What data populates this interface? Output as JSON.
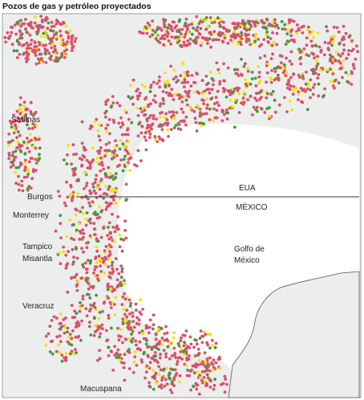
{
  "title": "Pozos de gas y petróleo proyectados",
  "labels": {
    "sabinas": "Sabinas",
    "burgos": "Burgos",
    "monterrey": "Monterrey",
    "tampico": "Tampico",
    "misantla": "Misantla",
    "veracruz": "Veracruz",
    "macuspana": "Macuspana",
    "eua": "EUA",
    "mexico": "MÉXICO",
    "golfo_1": "Golfo de",
    "golfo_2": "México"
  }
}
